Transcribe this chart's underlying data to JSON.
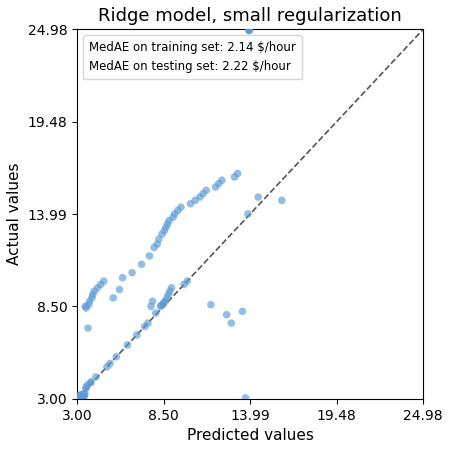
{
  "title": "Ridge model, small regularization",
  "xlabel": "Predicted values",
  "ylabel": "Actual values",
  "xlim": [
    3.0,
    24.98
  ],
  "ylim": [
    3.0,
    24.98
  ],
  "xticks": [
    3.0,
    8.5,
    13.99,
    19.48,
    24.98
  ],
  "yticks": [
    3.0,
    8.5,
    13.99,
    19.48,
    24.98
  ],
  "xticklabels": [
    "3.00",
    "8.50",
    "13.99",
    "19.48",
    "24.98"
  ],
  "yticklabels": [
    "3.00",
    "8.50",
    "13.99",
    "19.48",
    "24.98"
  ],
  "legend_text": [
    "MedAE on training set: 2.14 $/hour",
    "MedAE on testing set: 2.22 $/hour"
  ],
  "dot_color": "#5B9BD5",
  "dot_alpha": 0.65,
  "dot_size": 30,
  "figsize": [
    4.5,
    4.5
  ],
  "dpi": 100,
  "scatter_x": [
    3.02,
    3.04,
    3.06,
    3.08,
    3.1,
    3.12,
    3.14,
    3.16,
    3.18,
    3.2,
    3.22,
    3.24,
    3.26,
    3.28,
    3.3,
    3.32,
    3.35,
    3.38,
    3.4,
    3.42,
    3.45,
    3.48,
    3.5,
    3.52,
    3.55,
    3.58,
    3.6,
    3.65,
    3.7,
    3.75,
    3.8,
    3.85,
    3.9,
    3.95,
    4.0,
    4.1,
    4.2,
    4.3,
    4.5,
    4.7,
    4.9,
    5.1,
    5.3,
    5.5,
    5.7,
    5.9,
    6.2,
    6.5,
    6.8,
    7.1,
    7.3,
    7.5,
    7.6,
    7.7,
    7.8,
    7.9,
    8.0,
    8.1,
    8.2,
    8.3,
    8.35,
    8.4,
    8.45,
    8.5,
    8.55,
    8.6,
    8.65,
    8.7,
    8.75,
    8.8,
    8.85,
    8.9,
    9.0,
    9.1,
    9.2,
    9.4,
    9.6,
    9.8,
    10.0,
    10.2,
    10.5,
    10.8,
    11.0,
    11.2,
    11.5,
    11.8,
    12.0,
    12.2,
    12.5,
    12.8,
    13.0,
    13.2,
    13.5,
    13.7,
    13.85,
    13.9,
    13.92,
    13.95,
    14.5,
    16.0
  ],
  "scatter_y": [
    3.05,
    3.08,
    3.1,
    3.05,
    3.12,
    3.08,
    3.15,
    3.18,
    3.1,
    3.2,
    3.15,
    3.22,
    3.18,
    3.12,
    3.25,
    3.2,
    3.15,
    3.05,
    3.08,
    3.1,
    3.18,
    3.22,
    3.3,
    8.5,
    3.6,
    8.4,
    3.7,
    3.8,
    7.2,
    8.6,
    8.8,
    3.95,
    4.0,
    9.0,
    9.2,
    9.4,
    4.3,
    9.6,
    9.8,
    10.0,
    4.9,
    5.1,
    9.0,
    5.5,
    9.5,
    10.2,
    6.2,
    10.5,
    6.8,
    11.0,
    7.3,
    7.5,
    11.5,
    8.5,
    8.8,
    12.0,
    8.1,
    12.2,
    12.5,
    8.5,
    8.55,
    12.8,
    8.6,
    8.7,
    13.0,
    8.8,
    13.2,
    9.0,
    13.4,
    9.2,
    13.6,
    9.4,
    9.6,
    13.8,
    14.0,
    14.2,
    14.4,
    9.8,
    10.0,
    14.6,
    14.8,
    15.0,
    15.2,
    15.4,
    8.6,
    15.6,
    15.8,
    16.0,
    8.0,
    7.5,
    16.2,
    16.4,
    8.2,
    3.05,
    14.0,
    24.95,
    24.9,
    24.92,
    15.0,
    14.8
  ]
}
